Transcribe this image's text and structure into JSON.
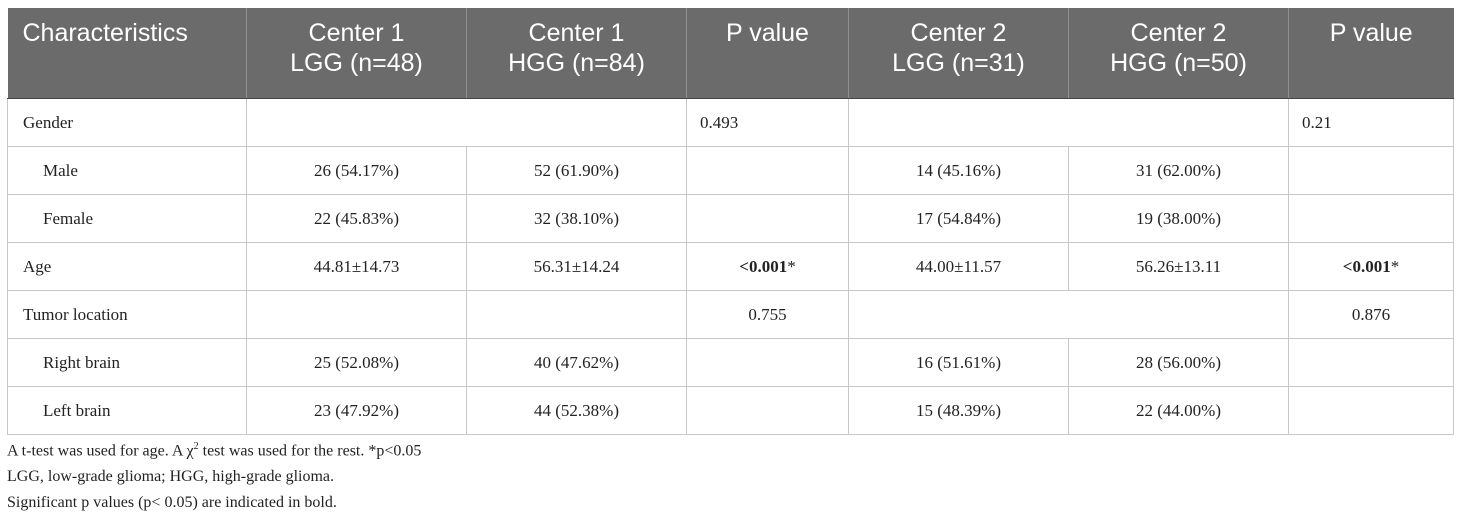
{
  "headers": [
    [
      "Characteristics"
    ],
    [
      "Center 1",
      "LGG (n=48)"
    ],
    [
      "Center 1",
      "HGG (n=84)"
    ],
    [
      "P value"
    ],
    [
      "Center 2",
      "LGG (n=31)"
    ],
    [
      "Center 2",
      "HGG (n=50)"
    ],
    [
      "P value"
    ]
  ],
  "rows": {
    "gender": {
      "label": "Gender",
      "p1": "0.493",
      "p2": "0.21"
    },
    "male": {
      "label": "Male",
      "c1_lgg": "26 (54.17%)",
      "c1_hgg": "52 (61.90%)",
      "c2_lgg": "14 (45.16%)",
      "c2_hgg": "31 (62.00%)"
    },
    "female": {
      "label": "Female",
      "c1_lgg": "22 (45.83%)",
      "c1_hgg": "32 (38.10%)",
      "c2_lgg": "17 (54.84%)",
      "c2_hgg": "19 (38.00%)"
    },
    "age": {
      "label": "Age",
      "c1_lgg": "44.81±14.73",
      "c1_hgg": "56.31±14.24",
      "p1": "<0.001",
      "p1_mark": "*",
      "c2_lgg": "44.00±11.57",
      "c2_hgg": "56.26±13.11",
      "p2": "<0.001",
      "p2_mark": "*"
    },
    "location": {
      "label": "Tumor location",
      "p1": "0.755",
      "p2": "0.876"
    },
    "right": {
      "label": "Right brain",
      "c1_lgg": "25 (52.08%)",
      "c1_hgg": "40 (47.62%)",
      "c2_lgg": "16 (51.61%)",
      "c2_hgg": "28 (56.00%)"
    },
    "left": {
      "label": "Left brain",
      "c1_lgg": "23 (47.92%)",
      "c1_hgg": "44 (52.38%)",
      "c2_lgg": "15 (48.39%)",
      "c2_hgg": "22 (44.00%)"
    }
  },
  "notes": {
    "line1_a": "A t-test was used for age. A χ",
    "line1_sup": "2",
    "line1_b": " test was used for the rest. *p<0.05",
    "line2": "LGG, low-grade glioma; HGG, high-grade glioma.",
    "line3": "Significant p values (p< 0.05) are indicated in bold."
  }
}
